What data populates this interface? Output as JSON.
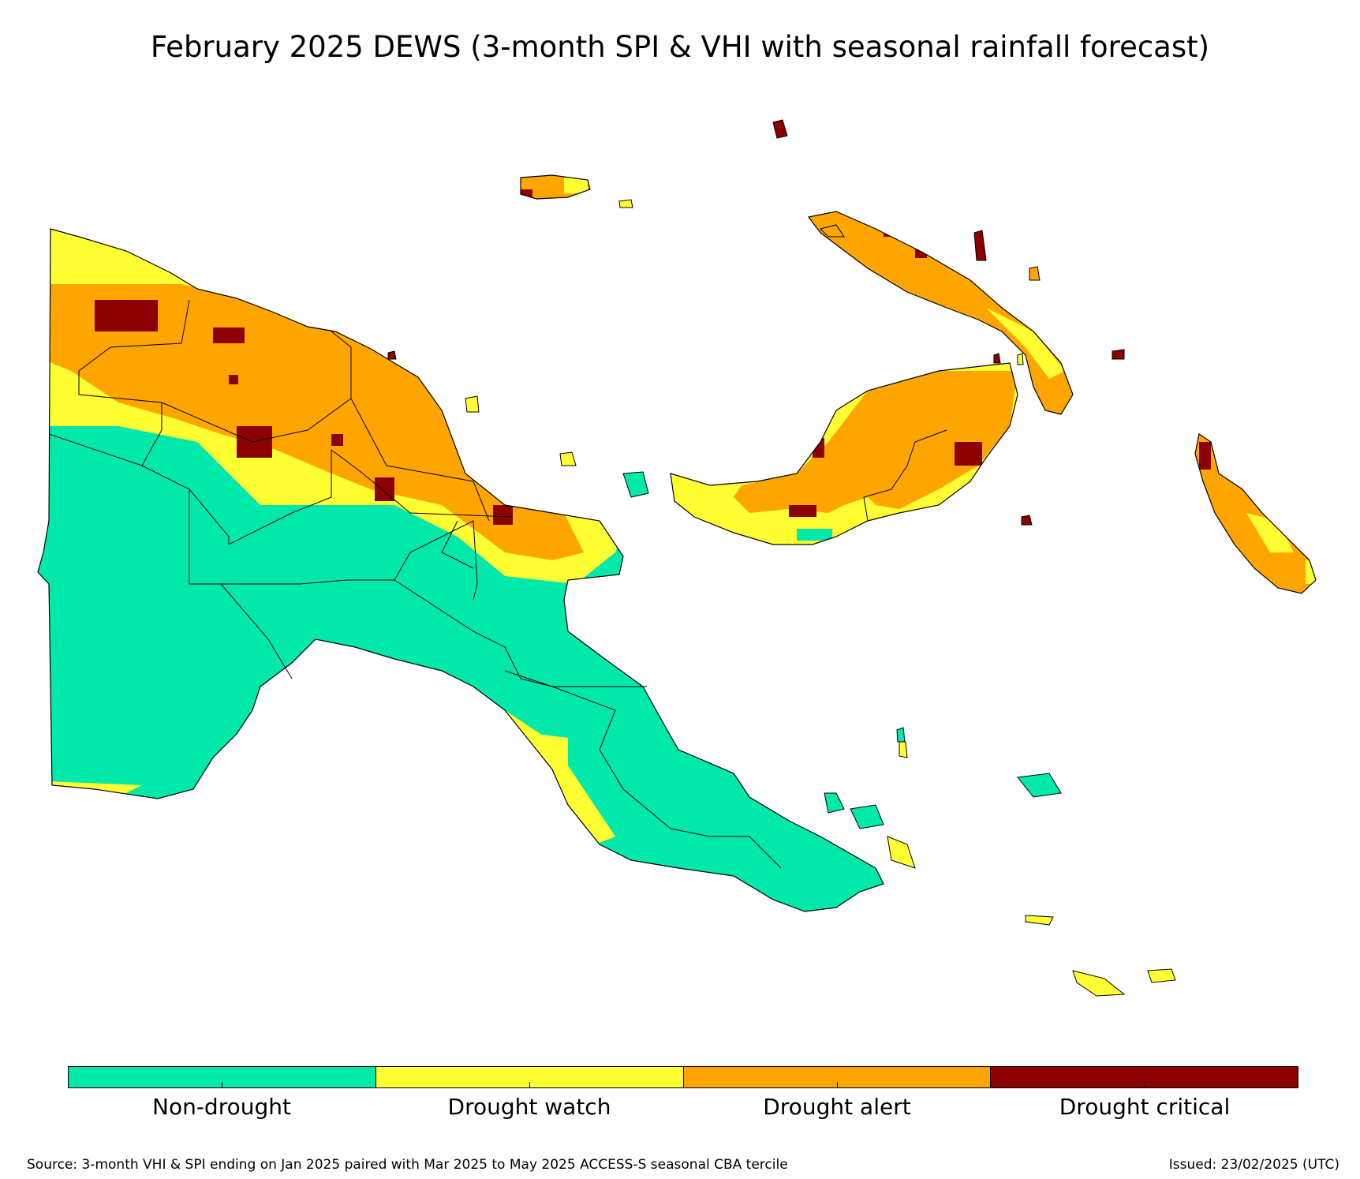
{
  "title": "February 2025 DEWS (3-month SPI & VHI with seasonal rainfall forecast)",
  "legend": {
    "categories": [
      {
        "label": "Non-drought",
        "color": "#00e8aa"
      },
      {
        "label": "Drought watch",
        "color": "#ffff33"
      },
      {
        "label": "Drought alert",
        "color": "#ffa500"
      },
      {
        "label": "Drought critical",
        "color": "#8b0000"
      }
    ]
  },
  "footer": {
    "source": "Source: 3-month VHI & SPI ending on Jan 2025 paired with Mar 2025 to May 2025 ACCESS-S seasonal CBA tercile",
    "issued": "Issued: 23/02/2025 (UTC)"
  },
  "map": {
    "region": "Papua New Guinea",
    "colors": {
      "non_drought": "#00e8aa",
      "watch": "#ffff33",
      "alert": "#ffa500",
      "critical": "#8b0000",
      "border": "#000000"
    }
  }
}
